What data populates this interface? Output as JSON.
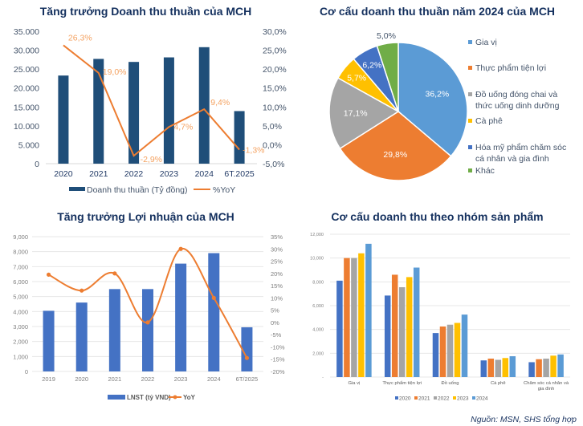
{
  "source": "Nguồn: MSN, SHS tổng hợp",
  "chart_data": [
    {
      "id": "revenue",
      "type": "bar",
      "title": "Tăng trưởng Doanh thu thuần của MCH",
      "categories": [
        "2020",
        "2021",
        "2022",
        "2023",
        "2024",
        "6T.2025"
      ],
      "series": [
        {
          "name": "Doanh thu thuần (Tỷ đồng)",
          "type": "bar",
          "axis": "left",
          "color": "#1f4e79",
          "values": [
            23300,
            27700,
            26900,
            28100,
            30800,
            13900
          ]
        },
        {
          "name": "%YoY",
          "type": "line",
          "axis": "right",
          "color": "#ed7d31",
          "values": [
            26.3,
            19.0,
            -2.9,
            4.7,
            9.4,
            -1.3
          ],
          "labels": [
            "26,3%",
            "19,0%",
            "-2,9%",
            "4,7%",
            "9,4%",
            "-1,3%"
          ]
        }
      ],
      "ylim_left": [
        0,
        35000
      ],
      "ylim_right": [
        -5,
        30
      ],
      "yticks_left": [
        "0",
        "5.000",
        "10.000",
        "15.000",
        "20.000",
        "25.000",
        "30.000",
        "35.000"
      ],
      "yticks_right": [
        "-5,0%",
        "0,0%",
        "5,0%",
        "10,0%",
        "15,0%",
        "20,0%",
        "25,0%",
        "30,0%"
      ],
      "grid": false,
      "legend": "bottom"
    },
    {
      "id": "structure2024",
      "type": "pie",
      "title": "Cơ cấu doanh thu thuần năm 2024 của MCH",
      "slices": [
        {
          "label": "Gia vị",
          "value": 36.2,
          "text": "36,2%",
          "color": "#5b9bd5"
        },
        {
          "label": "Thực phẩm tiện lợi",
          "value": 29.8,
          "text": "29,8%",
          "color": "#ed7d31"
        },
        {
          "label": "Đồ uống đóng chai và thức uống dinh dưỡng",
          "value": 17.1,
          "text": "17,1%",
          "color": "#a5a5a5"
        },
        {
          "label": "Cà phê",
          "value": 5.7,
          "text": "5,7%",
          "color": "#ffc000"
        },
        {
          "label": "Hóa mỹ phẩm chăm sóc cá nhân và gia đình",
          "value": 6.2,
          "text": "6,2%",
          "color": "#4472c4"
        },
        {
          "label": "Khác",
          "value": 5.0,
          "text": "5,0%",
          "color": "#70ad47"
        }
      ],
      "legend_lines": [
        [
          "Gia vị"
        ],
        [
          "Thực phẩm tiện lợi"
        ],
        [
          "Đồ uống đóng chai và",
          "thức uống dinh dưỡng"
        ],
        [
          "Cà phê"
        ],
        [
          "Hóa mỹ phẩm chăm sóc",
          "cá nhân và gia đình"
        ],
        [
          "Khác"
        ]
      ],
      "legend": "right"
    },
    {
      "id": "profit",
      "type": "bar",
      "title": "Tăng trưởng Lợi nhuận của MCH",
      "categories": [
        "2019",
        "2020",
        "2021",
        "2022",
        "2023",
        "2024",
        "6T/2025"
      ],
      "series": [
        {
          "name": "LNST (tỷ VND)",
          "type": "bar",
          "axis": "left",
          "color": "#4472c4",
          "values": [
            4050,
            4600,
            5500,
            5500,
            7200,
            7900,
            2950
          ]
        },
        {
          "name": "YoY",
          "type": "line",
          "axis": "right",
          "color": "#ed7d31",
          "values": [
            19.5,
            13,
            20,
            0,
            30,
            10,
            -14.5
          ]
        }
      ],
      "ylim_left": [
        0,
        9000
      ],
      "ylim_right": [
        -20,
        35
      ],
      "yticks_left": [
        "0",
        "1,000",
        "2,000",
        "3,000",
        "4,000",
        "5,000",
        "6,000",
        "7,000",
        "8,000",
        "9,000"
      ],
      "yticks_right": [
        "-20%",
        "-15%",
        "-10%",
        "-5%",
        "0%",
        "5%",
        "10%",
        "15%",
        "20%",
        "25%",
        "30%",
        "35%"
      ],
      "grid": true,
      "legend": "bottom"
    },
    {
      "id": "byproduct",
      "type": "bar",
      "title": "Cơ cấu doanh thu theo nhóm sản phẩm",
      "categories": [
        "Gia vị",
        "Thực phẩm tiện lợi",
        "Đồ uống",
        "Cà phê",
        "Chăm sóc cá nhân và gia đình"
      ],
      "category_lines": [
        [
          "Gia vị"
        ],
        [
          "Thực phẩm tiện lợi"
        ],
        [
          "Đồ uống"
        ],
        [
          "Cà phê"
        ],
        [
          "Chăm sóc cá nhân và",
          "gia đình"
        ]
      ],
      "series": [
        {
          "name": "2020",
          "color": "#4472c4",
          "values": [
            8100,
            6850,
            3700,
            1400,
            1250
          ]
        },
        {
          "name": "2021",
          "color": "#ed7d31",
          "values": [
            10000,
            8600,
            4250,
            1550,
            1500
          ]
        },
        {
          "name": "2022",
          "color": "#a5a5a5",
          "values": [
            10000,
            7550,
            4400,
            1450,
            1550
          ]
        },
        {
          "name": "2023",
          "color": "#ffc000",
          "values": [
            10400,
            8400,
            4550,
            1600,
            1800
          ]
        },
        {
          "name": "2024",
          "color": "#5b9bd5",
          "values": [
            11200,
            9200,
            5250,
            1750,
            1900
          ]
        }
      ],
      "ylim": [
        0,
        12000
      ],
      "yticks": [
        "-",
        "2,000",
        "4,000",
        "6,000",
        "8,000",
        "10,000",
        "12,000"
      ],
      "grid": true,
      "legend": "bottom"
    }
  ]
}
